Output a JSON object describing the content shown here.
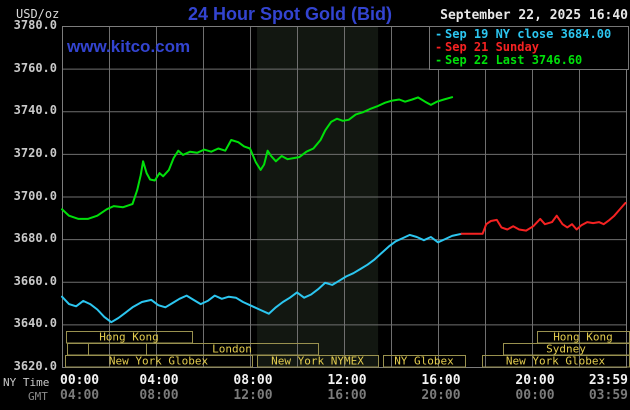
{
  "header": {
    "unit": "USD/oz",
    "title": "24 Hour Spot Gold (Bid)",
    "datetime": "September 22, 2025 16:40",
    "watermark": "www.kitco.com"
  },
  "legend": {
    "items": [
      {
        "marker": "-",
        "label": "Sep 19 NY close 3684.00",
        "color": "#2cc6f0"
      },
      {
        "marker": "-",
        "label": "Sep 21 Sunday",
        "color": "#f52222"
      },
      {
        "marker": "-",
        "label": "Sep 22 Last 3746.60",
        "color": "#00e00a"
      }
    ]
  },
  "axes": {
    "ny_label": "NY Time",
    "gmt_label": "GMT",
    "y_ticks": [
      "3780.0",
      "3760.0",
      "3740.0",
      "3720.0",
      "3700.0",
      "3680.0",
      "3660.0",
      "3640.0",
      "3620.0"
    ],
    "x_ticks": [
      {
        "t": 0,
        "ny": "00:00",
        "gmt": "04:00"
      },
      {
        "t": 4,
        "ny": "04:00",
        "gmt": "08:00"
      },
      {
        "t": 8,
        "ny": "08:00",
        "gmt": "12:00"
      },
      {
        "t": 12,
        "ny": "12:00",
        "gmt": "16:00"
      },
      {
        "t": 16,
        "ny": "16:00",
        "gmt": "20:00"
      },
      {
        "t": 20,
        "ny": "20:00",
        "gmt": "00:00"
      },
      {
        "t": 23.983,
        "ny": "23:59",
        "gmt": "03:59"
      }
    ]
  },
  "sessions": {
    "border_color": "#99914f",
    "text_color": "#e3cc4e",
    "rows": [
      {
        "boxes": [
          {
            "label": "Hong Kong",
            "x1": 66,
            "x2": 192
          },
          {
            "label": "Hong Kong",
            "x1": 537,
            "x2": 629
          }
        ]
      },
      {
        "boxes": [
          {
            "label": "",
            "x1": 67,
            "x2": 88
          },
          {
            "label": "",
            "x1": 88,
            "x2": 146
          },
          {
            "label": "London",
            "x1": 146,
            "x2": 318
          },
          {
            "label": "Sydney",
            "x1": 503,
            "x2": 629
          }
        ]
      },
      {
        "boxes": [
          {
            "label": "New York Globex",
            "x1": 65,
            "x2": 252
          },
          {
            "label": "New York NYMEX",
            "x1": 257,
            "x2": 378
          },
          {
            "label": "NY Globex",
            "x1": 383,
            "x2": 465
          },
          {
            "label": "New York Globex",
            "x1": 482,
            "x2": 629
          }
        ]
      }
    ]
  },
  "chart_data": {
    "type": "line",
    "title": "24 Hour Spot Gold (Bid)",
    "xlabel": "NY Time (hours)",
    "ylabel": "USD/oz",
    "xlim": [
      0,
      24
    ],
    "ylim": [
      3620,
      3780
    ],
    "grid": {
      "x_step_hours": 2,
      "y_step": 20,
      "color": "#6f6f6f"
    },
    "highlight_band_hours": [
      8.3,
      13.45
    ],
    "series": [
      {
        "name": "Sep 19 NY close 3684.00",
        "color": "#2cc6f0",
        "points": [
          [
            0,
            3653
          ],
          [
            0.3,
            3649.5
          ],
          [
            0.6,
            3648.5
          ],
          [
            0.9,
            3651
          ],
          [
            1.2,
            3649.5
          ],
          [
            1.5,
            3647
          ],
          [
            1.8,
            3643.5
          ],
          [
            2.1,
            3641
          ],
          [
            2.4,
            3643
          ],
          [
            2.7,
            3645.5
          ],
          [
            3.0,
            3648
          ],
          [
            3.4,
            3650.5
          ],
          [
            3.8,
            3651.5
          ],
          [
            4.1,
            3649
          ],
          [
            4.4,
            3648
          ],
          [
            4.7,
            3650
          ],
          [
            5.0,
            3652
          ],
          [
            5.3,
            3653.5
          ],
          [
            5.6,
            3651.5
          ],
          [
            5.9,
            3649.5
          ],
          [
            6.2,
            3651
          ],
          [
            6.5,
            3653.5
          ],
          [
            6.8,
            3652
          ],
          [
            7.1,
            3653
          ],
          [
            7.4,
            3652.5
          ],
          [
            7.7,
            3650.5
          ],
          [
            8.0,
            3649
          ],
          [
            8.4,
            3647
          ],
          [
            8.8,
            3645
          ],
          [
            9.1,
            3648
          ],
          [
            9.4,
            3650.5
          ],
          [
            9.7,
            3652.5
          ],
          [
            10.0,
            3655
          ],
          [
            10.3,
            3652.5
          ],
          [
            10.6,
            3654
          ],
          [
            10.9,
            3656.5
          ],
          [
            11.2,
            3659.5
          ],
          [
            11.5,
            3658.5
          ],
          [
            11.8,
            3660.5
          ],
          [
            12.1,
            3662.5
          ],
          [
            12.4,
            3664
          ],
          [
            12.7,
            3666
          ],
          [
            13.0,
            3668
          ],
          [
            13.3,
            3670.5
          ],
          [
            13.6,
            3673.5
          ],
          [
            13.9,
            3676.5
          ],
          [
            14.2,
            3679
          ],
          [
            14.5,
            3680.5
          ],
          [
            14.8,
            3682
          ],
          [
            15.1,
            3681
          ],
          [
            15.4,
            3679.5
          ],
          [
            15.7,
            3681
          ],
          [
            16.0,
            3678.5
          ],
          [
            16.3,
            3680
          ],
          [
            16.6,
            3681.5
          ],
          [
            17.0,
            3682.5
          ]
        ]
      },
      {
        "name": "Sep 21 Sunday",
        "color": "#f52222",
        "points": [
          [
            17.0,
            3682.5
          ],
          [
            17.9,
            3682.5
          ],
          [
            18.05,
            3687
          ],
          [
            18.25,
            3688.5
          ],
          [
            18.5,
            3689
          ],
          [
            18.7,
            3685.5
          ],
          [
            18.95,
            3684.5
          ],
          [
            19.2,
            3686
          ],
          [
            19.45,
            3684.5
          ],
          [
            19.75,
            3684
          ],
          [
            20.05,
            3686
          ],
          [
            20.35,
            3689.5
          ],
          [
            20.55,
            3687
          ],
          [
            20.85,
            3688
          ],
          [
            21.05,
            3691
          ],
          [
            21.3,
            3687
          ],
          [
            21.5,
            3685.5
          ],
          [
            21.7,
            3687
          ],
          [
            21.9,
            3684.5
          ],
          [
            22.1,
            3686.5
          ],
          [
            22.35,
            3688
          ],
          [
            22.6,
            3687.5
          ],
          [
            22.85,
            3688
          ],
          [
            23.05,
            3687
          ],
          [
            23.3,
            3689
          ],
          [
            23.5,
            3691
          ],
          [
            23.7,
            3693.5
          ],
          [
            23.9,
            3696
          ],
          [
            23.98,
            3697
          ]
        ]
      },
      {
        "name": "Sep 22 Last 3746.60",
        "color": "#00e00a",
        "points": [
          [
            0,
            3694
          ],
          [
            0.3,
            3691
          ],
          [
            0.7,
            3689.5
          ],
          [
            1.1,
            3689.5
          ],
          [
            1.5,
            3691
          ],
          [
            1.9,
            3694
          ],
          [
            2.2,
            3695.5
          ],
          [
            2.6,
            3695
          ],
          [
            3.0,
            3696.5
          ],
          [
            3.2,
            3703
          ],
          [
            3.35,
            3710
          ],
          [
            3.45,
            3716.5
          ],
          [
            3.6,
            3711
          ],
          [
            3.75,
            3708
          ],
          [
            3.95,
            3707.5
          ],
          [
            4.15,
            3711
          ],
          [
            4.3,
            3709.5
          ],
          [
            4.55,
            3712.5
          ],
          [
            4.75,
            3718
          ],
          [
            4.95,
            3721.5
          ],
          [
            5.15,
            3719.5
          ],
          [
            5.45,
            3721
          ],
          [
            5.75,
            3720.5
          ],
          [
            6.05,
            3722
          ],
          [
            6.35,
            3721
          ],
          [
            6.65,
            3722.5
          ],
          [
            6.95,
            3721.5
          ],
          [
            7.2,
            3726.5
          ],
          [
            7.5,
            3725.5
          ],
          [
            7.75,
            3723.5
          ],
          [
            8.0,
            3722.5
          ],
          [
            8.25,
            3716
          ],
          [
            8.45,
            3712.5
          ],
          [
            8.6,
            3715
          ],
          [
            8.75,
            3721.5
          ],
          [
            8.9,
            3719
          ],
          [
            9.1,
            3716.5
          ],
          [
            9.35,
            3719
          ],
          [
            9.6,
            3717.5
          ],
          [
            9.85,
            3718
          ],
          [
            10.1,
            3718.5
          ],
          [
            10.4,
            3721
          ],
          [
            10.7,
            3722.5
          ],
          [
            11.0,
            3726.5
          ],
          [
            11.2,
            3731
          ],
          [
            11.45,
            3735
          ],
          [
            11.7,
            3736.5
          ],
          [
            11.95,
            3735.5
          ],
          [
            12.2,
            3736
          ],
          [
            12.5,
            3738.5
          ],
          [
            12.8,
            3739.5
          ],
          [
            13.1,
            3741
          ],
          [
            13.45,
            3742.5
          ],
          [
            13.75,
            3744
          ],
          [
            14.05,
            3745
          ],
          [
            14.35,
            3745.5
          ],
          [
            14.6,
            3744.5
          ],
          [
            14.9,
            3745.5
          ],
          [
            15.15,
            3746.5
          ],
          [
            15.45,
            3744.5
          ],
          [
            15.7,
            3743
          ],
          [
            15.95,
            3744.5
          ],
          [
            16.25,
            3745.5
          ],
          [
            16.6,
            3746.6
          ]
        ]
      }
    ]
  }
}
